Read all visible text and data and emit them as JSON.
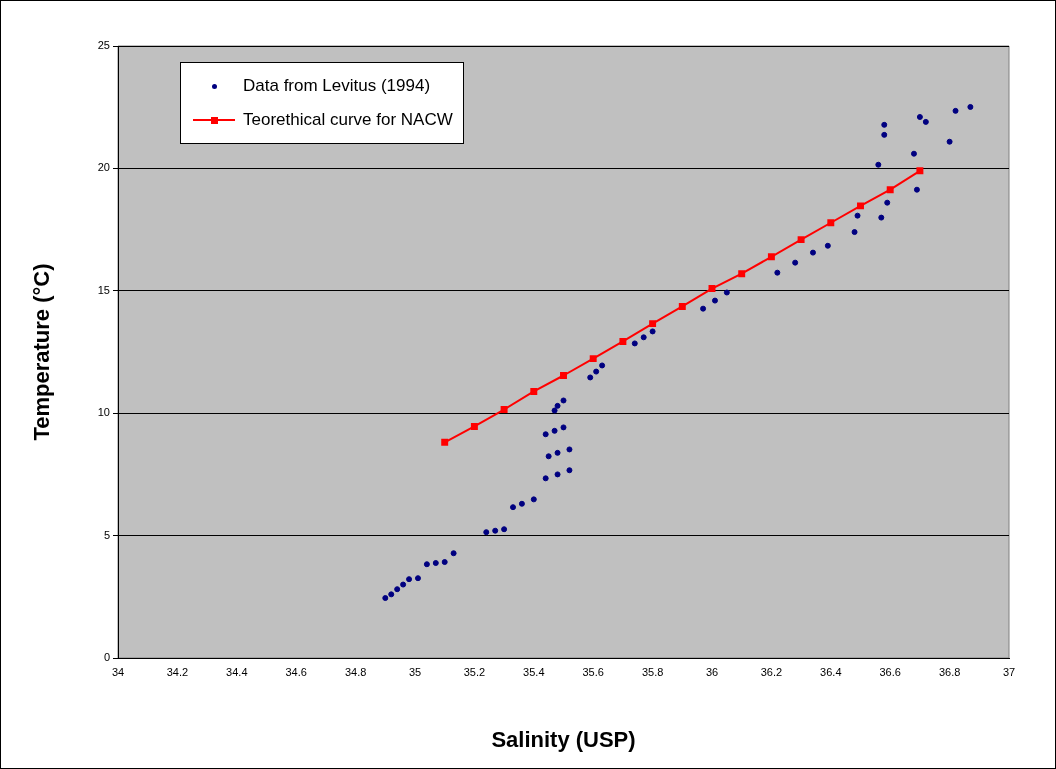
{
  "chart_data": {
    "type": "scatter",
    "xlabel": "Salinity (USP)",
    "ylabel": "Temperature (°C)",
    "xlim": [
      34,
      37
    ],
    "xticks": [
      34,
      34.2,
      34.4,
      34.6,
      34.8,
      35,
      35.2,
      35.4,
      35.6,
      35.8,
      36,
      36.2,
      36.4,
      36.6,
      36.8,
      37
    ],
    "ylim": [
      0,
      25
    ],
    "yticks": [
      0,
      5,
      10,
      15,
      20,
      25
    ],
    "grid": "y",
    "legend": "top left",
    "series": [
      {
        "name": "Data from Levitus (1994)",
        "type": "scatter",
        "marker": "circle",
        "color": "#000080",
        "x": [
          34.9,
          34.92,
          34.94,
          34.96,
          34.98,
          35.01,
          35.04,
          35.07,
          35.1,
          35.13,
          35.24,
          35.27,
          35.3,
          35.33,
          35.36,
          35.4,
          35.44,
          35.48,
          35.52,
          35.45,
          35.48,
          35.52,
          35.44,
          35.47,
          35.5,
          35.47,
          35.48,
          35.5,
          35.59,
          35.61,
          35.63,
          35.74,
          35.77,
          35.8,
          35.97,
          36.01,
          36.05,
          36.22,
          36.28,
          36.34,
          36.39,
          36.48,
          36.57,
          36.49,
          36.59,
          36.69,
          36.56,
          36.68,
          36.8,
          36.58,
          36.72,
          36.87,
          36.58,
          36.7,
          36.82
        ],
        "values": [
          2.45,
          2.6,
          2.81,
          3.0,
          3.22,
          3.26,
          3.83,
          3.88,
          3.92,
          4.28,
          5.14,
          5.2,
          5.26,
          6.16,
          6.3,
          6.48,
          7.34,
          7.5,
          7.67,
          8.24,
          8.38,
          8.52,
          9.14,
          9.28,
          9.42,
          10.11,
          10.3,
          10.52,
          11.46,
          11.7,
          11.95,
          12.85,
          13.1,
          13.34,
          14.27,
          14.6,
          14.93,
          15.74,
          16.15,
          16.56,
          16.84,
          17.4,
          17.99,
          18.07,
          18.6,
          19.13,
          20.15,
          20.6,
          21.09,
          21.37,
          21.9,
          22.51,
          21.78,
          22.1,
          22.35
        ]
      },
      {
        "name": "Teorethical curve for NACW",
        "type": "line",
        "marker": "square",
        "color": "#ff0000",
        "x": [
          35.1,
          35.2,
          35.3,
          35.4,
          35.5,
          35.6,
          35.7,
          35.8,
          35.9,
          36.0,
          36.1,
          36.2,
          36.3,
          36.4,
          36.5,
          36.6,
          36.7
        ],
        "values": [
          8.81,
          9.46,
          10.15,
          10.89,
          11.54,
          12.23,
          12.93,
          13.66,
          14.36,
          15.09,
          15.7,
          16.39,
          17.09,
          17.78,
          18.47,
          19.13,
          19.9
        ]
      }
    ]
  }
}
